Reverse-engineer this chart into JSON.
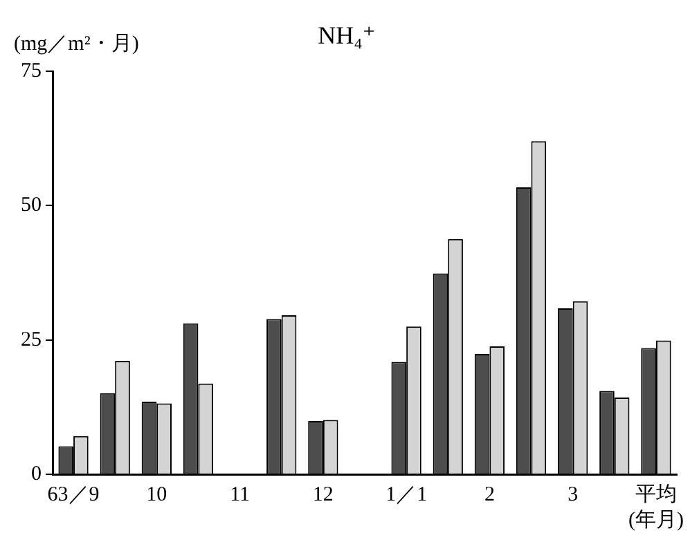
{
  "chart_data": {
    "type": "bar",
    "title": "NH₄⁺",
    "ylabel": "(mg／m²・月)",
    "xlabel": "(年月)",
    "categories": [
      "63／9",
      null,
      "10",
      null,
      "11",
      null,
      "12",
      null,
      "1／1",
      null,
      "2",
      null,
      "3",
      null,
      "平均"
    ],
    "series": [
      {
        "color": "#4d4d4d",
        "values": [
          5.2,
          15.1,
          13.5,
          28.1,
          null,
          28.9,
          9.9,
          null,
          20.9,
          37.4,
          22.4,
          53.4,
          30.9,
          15.5,
          23.5
        ]
      },
      {
        "color": "#d4d4d4",
        "values": [
          7.1,
          21.1,
          13.2,
          16.9,
          null,
          29.6,
          10.1,
          null,
          27.5,
          43.8,
          23.8,
          62.0,
          32.2,
          14.3,
          24.9
        ]
      }
    ],
    "ylim": [
      0,
      75
    ],
    "yticks": [
      0,
      25,
      50,
      75
    ],
    "grid": false,
    "legend": false
  }
}
